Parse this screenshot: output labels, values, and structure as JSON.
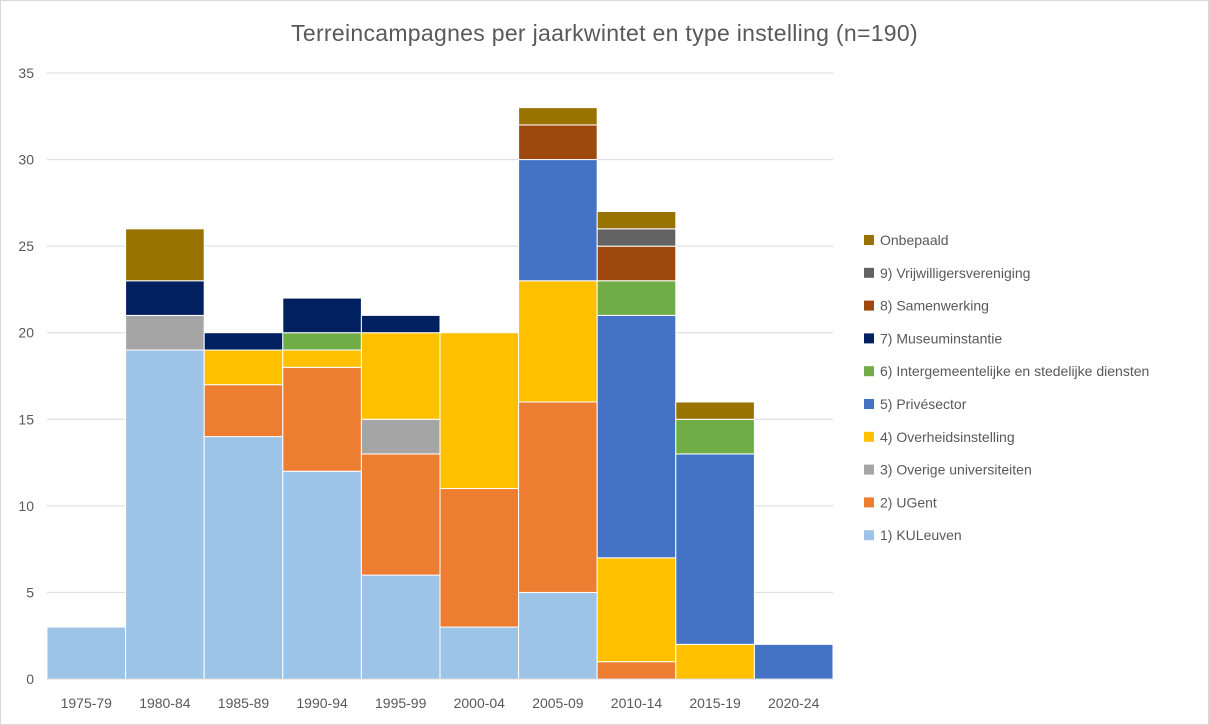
{
  "chart_data": {
    "type": "bar",
    "stacked": true,
    "title": "Terreincampagnes per jaarkwintet en type instelling (n=190)",
    "xlabel": "",
    "ylabel": "",
    "ylim": [
      0,
      35
    ],
    "yticks": [
      0,
      5,
      10,
      15,
      20,
      25,
      30,
      35
    ],
    "grid": true,
    "legend_position": "right",
    "categories": [
      "1975-79",
      "1980-84",
      "1985-89",
      "1990-94",
      "1995-99",
      "2000-04",
      "2005-09",
      "2010-14",
      "2015-19",
      "2020-24"
    ],
    "series": [
      {
        "name": "1) KULeuven",
        "color": "#9dc3e6",
        "values": [
          3,
          19,
          14,
          12,
          6,
          3,
          5,
          0,
          0,
          0
        ]
      },
      {
        "name": "2) UGent",
        "color": "#ed7d31",
        "values": [
          0,
          0,
          3,
          6,
          7,
          8,
          11,
          1,
          0,
          0
        ]
      },
      {
        "name": "3) Overige universiteiten",
        "color": "#a5a5a5",
        "values": [
          0,
          2,
          0,
          0,
          2,
          0,
          0,
          0,
          0,
          0
        ]
      },
      {
        "name": "4) Overheidsinstelling",
        "color": "#ffc000",
        "values": [
          0,
          0,
          2,
          1,
          5,
          9,
          7,
          6,
          2,
          0
        ]
      },
      {
        "name": "5) Privésector",
        "color": "#4472c4",
        "values": [
          0,
          0,
          0,
          0,
          0,
          0,
          7,
          14,
          11,
          2
        ]
      },
      {
        "name": "6) Intergemeentelijke en stedelijke diensten",
        "color": "#70ad47",
        "values": [
          0,
          0,
          0,
          1,
          0,
          0,
          0,
          2,
          2,
          0
        ]
      },
      {
        "name": "7) Museuminstantie",
        "color": "#002060",
        "values": [
          0,
          2,
          1,
          2,
          1,
          0,
          0,
          0,
          0,
          0
        ]
      },
      {
        "name": "8) Samenwerking",
        "color": "#9e480e",
        "values": [
          0,
          0,
          0,
          0,
          0,
          0,
          2,
          2,
          0,
          0
        ]
      },
      {
        "name": "9) Vrijwilligersvereniging",
        "color": "#636363",
        "values": [
          0,
          0,
          0,
          0,
          0,
          0,
          0,
          1,
          0,
          0
        ]
      },
      {
        "name": "Onbepaald",
        "color": "#997300",
        "values": [
          0,
          3,
          0,
          0,
          0,
          0,
          1,
          1,
          1,
          0
        ]
      }
    ]
  }
}
